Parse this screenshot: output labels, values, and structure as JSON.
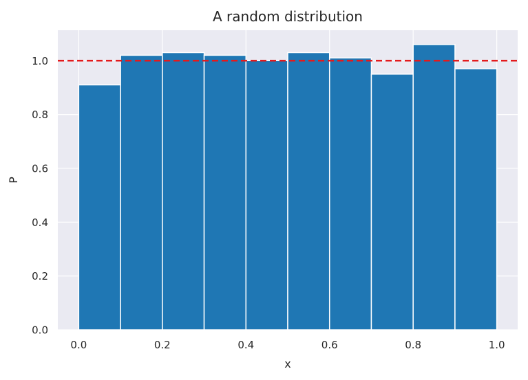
{
  "chart_data": {
    "type": "bar",
    "title": "A random distribution",
    "xlabel": "x",
    "ylabel": "P",
    "xlim": [
      -0.05,
      1.05
    ],
    "ylim": [
      0.0,
      1.113
    ],
    "xticks": [
      "0.0",
      "0.2",
      "0.4",
      "0.6",
      "0.8",
      "1.0"
    ],
    "yticks": [
      "0.0",
      "0.2",
      "0.4",
      "0.6",
      "0.8",
      "1.0"
    ],
    "grid": true,
    "bins": [
      {
        "x0": 0.0,
        "x1": 0.1,
        "value": 0.91
      },
      {
        "x0": 0.1,
        "x1": 0.2,
        "value": 1.02
      },
      {
        "x0": 0.2,
        "x1": 0.3,
        "value": 1.03
      },
      {
        "x0": 0.3,
        "x1": 0.4,
        "value": 1.02
      },
      {
        "x0": 0.4,
        "x1": 0.5,
        "value": 1.0
      },
      {
        "x0": 0.5,
        "x1": 0.6,
        "value": 1.03
      },
      {
        "x0": 0.6,
        "x1": 0.7,
        "value": 1.01
      },
      {
        "x0": 0.7,
        "x1": 0.8,
        "value": 0.95
      },
      {
        "x0": 0.8,
        "x1": 0.9,
        "value": 1.06
      },
      {
        "x0": 0.9,
        "x1": 1.0,
        "value": 0.97
      }
    ],
    "reference_line": {
      "y": 1.0,
      "style": "dashed",
      "color": "#e41a1c"
    },
    "colors": {
      "bar": "#1f77b4",
      "bar_edge": "#ffffff",
      "plot_background": "#eaeaf2",
      "grid": "#ffffff"
    }
  }
}
